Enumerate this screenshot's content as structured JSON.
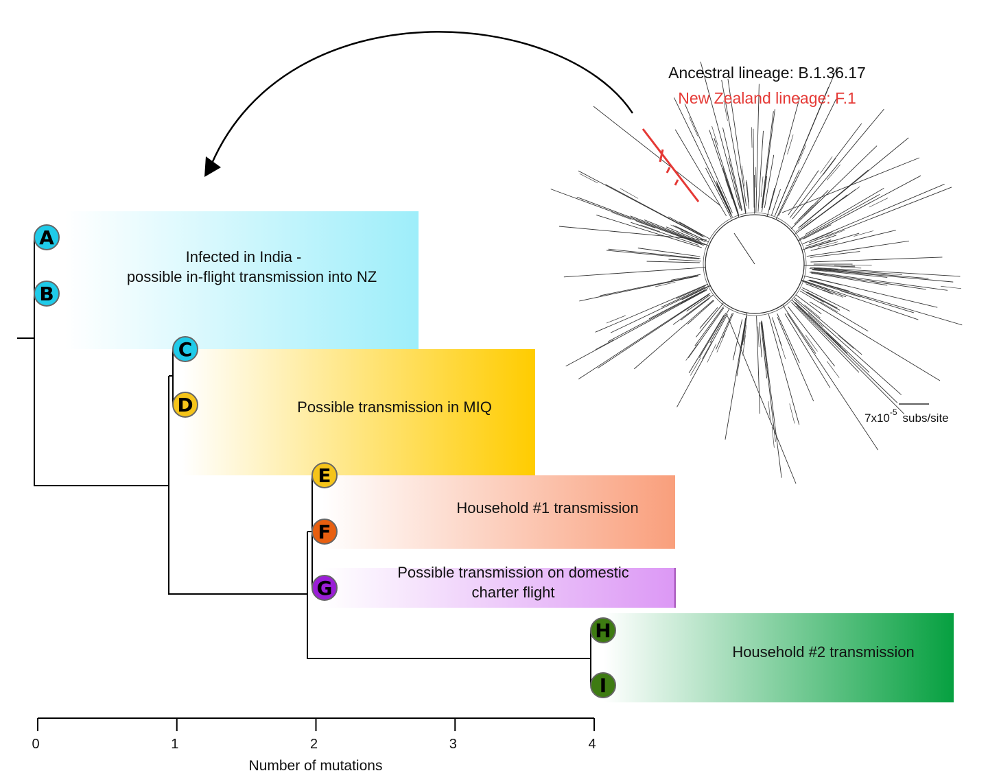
{
  "title_ancestral": "Ancestral lineage: B.1.36.17",
  "title_nz": "New Zealand lineage: F.1",
  "scale": {
    "base": "7x10",
    "exp": "-5",
    "unit": "subs/site"
  },
  "groups": [
    {
      "lines": [
        "Infected in India -",
        "possible in-flight transmission into NZ"
      ],
      "color": "#9eeefa"
    },
    {
      "lines": [
        "Possible transmission in MIQ"
      ],
      "color": "#ffcc00"
    },
    {
      "lines": [
        "Household #1 transmission"
      ],
      "color": "#f99f7c"
    },
    {
      "lines": [
        "Possible transmission on domestic",
        "charter flight"
      ],
      "color": "#dc98f5"
    },
    {
      "lines": [
        "Household #2 transmission"
      ],
      "color": "#06a040"
    }
  ],
  "nodes": [
    {
      "label": "A",
      "color": "#1fcbe9",
      "mutations": 0
    },
    {
      "label": "B",
      "color": "#1fcbe9",
      "mutations": 0
    },
    {
      "label": "C",
      "color": "#1fcbe9",
      "mutations": 1
    },
    {
      "label": "D",
      "color": "#f5c41a",
      "mutations": 1
    },
    {
      "label": "E",
      "color": "#f5c41a",
      "mutations": 2
    },
    {
      "label": "F",
      "color": "#e85f10",
      "mutations": 2
    },
    {
      "label": "G",
      "color": "#9a1ed6",
      "mutations": 2
    },
    {
      "label": "H",
      "color": "#3e7b12",
      "mutations": 4
    },
    {
      "label": "I",
      "color": "#3e7b12",
      "mutations": 4
    }
  ],
  "axis": {
    "label": "Number of mutations",
    "ticks": [
      "0",
      "1",
      "2",
      "3",
      "4"
    ]
  },
  "highlight_color": "#e53935"
}
